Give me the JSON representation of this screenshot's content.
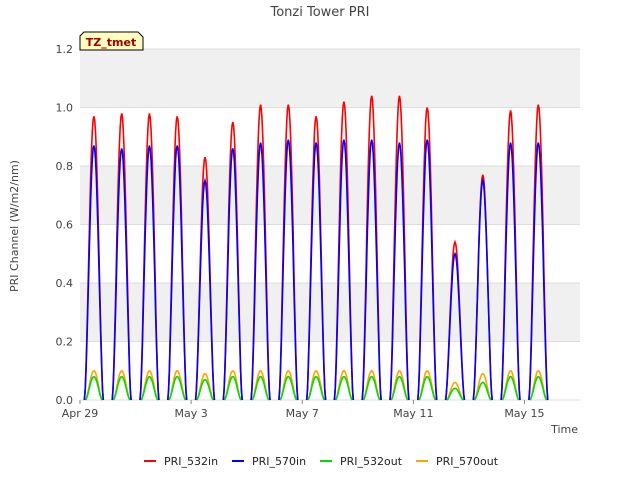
{
  "chart_data": {
    "type": "line",
    "title": "Tonzi Tower PRI",
    "xlabel": "Time",
    "ylabel": "PRI Channel (W/m2/nm)",
    "ylim": [
      0.0,
      1.2
    ],
    "xlim_days": [
      0,
      18
    ],
    "yticks": [
      "0.0",
      "0.2",
      "0.4",
      "0.6",
      "0.8",
      "1.0",
      "1.2"
    ],
    "ytick_values": [
      0.0,
      0.2,
      0.4,
      0.6,
      0.8,
      1.0,
      1.2
    ],
    "xticks": [
      "Apr 29",
      "May 3",
      "May 7",
      "May 11",
      "May 15"
    ],
    "xtick_days": [
      0,
      4,
      8,
      12,
      16
    ],
    "site_tag": "TZ_tmet",
    "day_index": [
      0,
      1,
      2,
      3,
      4,
      5,
      6,
      7,
      8,
      9,
      10,
      11,
      12,
      13,
      14,
      15,
      16
    ],
    "series": [
      {
        "name": "PRI_532in",
        "color": "#ff0000",
        "daily_peak": [
          0.97,
          0.98,
          0.98,
          0.97,
          0.83,
          0.95,
          1.01,
          1.01,
          0.97,
          1.02,
          1.04,
          1.04,
          1.0,
          0.54,
          0.77,
          0.99,
          1.01
        ]
      },
      {
        "name": "PRI_570in",
        "color": "#0000ff",
        "daily_peak": [
          0.87,
          0.86,
          0.87,
          0.87,
          0.75,
          0.86,
          0.88,
          0.89,
          0.88,
          0.89,
          0.89,
          0.88,
          0.89,
          0.5,
          0.75,
          0.88,
          0.88
        ]
      },
      {
        "name": "PRI_532out",
        "color": "#00dd00",
        "daily_peak": [
          0.08,
          0.08,
          0.08,
          0.08,
          0.07,
          0.08,
          0.08,
          0.08,
          0.08,
          0.08,
          0.08,
          0.08,
          0.08,
          0.04,
          0.06,
          0.08,
          0.08
        ]
      },
      {
        "name": "PRI_570out",
        "color": "#ffa500",
        "daily_peak": [
          0.1,
          0.1,
          0.1,
          0.1,
          0.09,
          0.1,
          0.1,
          0.1,
          0.1,
          0.1,
          0.1,
          0.1,
          0.1,
          0.06,
          0.09,
          0.1,
          0.1
        ]
      }
    ],
    "legend_position": "bottom"
  }
}
